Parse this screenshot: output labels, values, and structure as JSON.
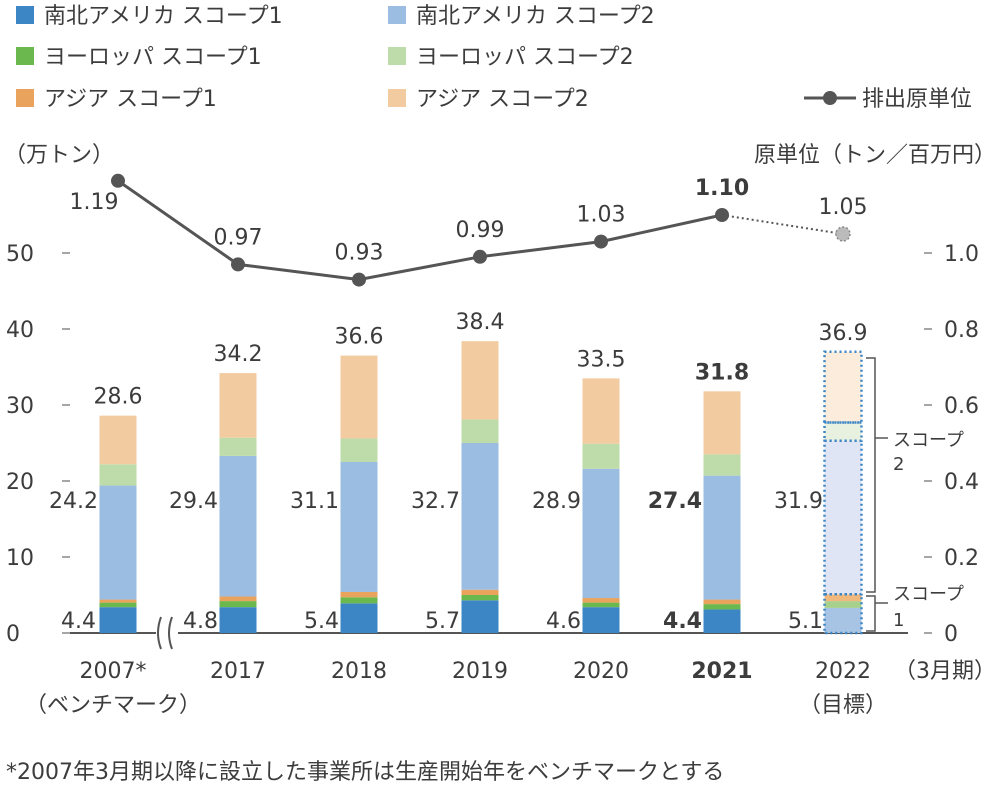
{
  "chart_data": {
    "type": "bar",
    "categories": [
      {
        "label": "2007*",
        "sublabel": "（ベンチマーク）",
        "bold": false
      },
      {
        "label": "2017",
        "sublabel": "",
        "bold": false
      },
      {
        "label": "2018",
        "sublabel": "",
        "bold": false
      },
      {
        "label": "2019",
        "sublabel": "",
        "bold": false
      },
      {
        "label": "2020",
        "sublabel": "",
        "bold": false
      },
      {
        "label": "2021",
        "sublabel": "",
        "bold": true
      },
      {
        "label": "2022",
        "sublabel": "（目標）",
        "bold": false,
        "target": true
      }
    ],
    "x_unit_label": "（3月期）",
    "series": [
      {
        "name": "南北アメリカ スコープ1",
        "color": "#3d86c6",
        "values": [
          3.4,
          3.4,
          3.9,
          4.3,
          3.4,
          3.1,
          3.3
        ]
      },
      {
        "name": "ヨーロッパ スコープ1",
        "color": "#6bb84f",
        "values": [
          0.6,
          0.8,
          0.8,
          0.7,
          0.6,
          0.7,
          0.9
        ]
      },
      {
        "name": "アジア スコープ1",
        "color": "#eaa35c",
        "values": [
          0.4,
          0.6,
          0.7,
          0.7,
          0.6,
          0.6,
          0.9
        ]
      },
      {
        "name": "南北アメリカ スコープ2",
        "color": "#9bbde2",
        "values": [
          15.0,
          18.5,
          17.1,
          19.3,
          17.0,
          16.3,
          20.2
        ]
      },
      {
        "name": "ヨーロッパ スコープ2",
        "color": "#bedcaa",
        "values": [
          2.8,
          2.4,
          3.1,
          3.1,
          3.3,
          2.8,
          2.4
        ]
      },
      {
        "name": "アジア スコープ2",
        "color": "#f3cba0",
        "values": [
          6.4,
          8.5,
          10.9,
          10.3,
          8.6,
          8.3,
          9.3
        ]
      }
    ],
    "totals": [
      "28.6",
      "34.2",
      "36.6",
      "38.4",
      "33.5",
      "31.8",
      "36.9"
    ],
    "scope2_totals": [
      "24.2",
      "29.4",
      "31.1",
      "32.7",
      "28.9",
      "27.4",
      "31.9"
    ],
    "scope1_totals": [
      "4.4",
      "4.8",
      "5.4",
      "5.7",
      "4.6",
      "4.4",
      "5.1"
    ],
    "line": {
      "name": "排出原単位",
      "color": "#555555",
      "values": [
        1.19,
        0.97,
        0.93,
        0.99,
        1.03,
        1.1,
        1.05
      ],
      "labels": [
        "1.19",
        "0.97",
        "0.93",
        "0.99",
        "1.03",
        "1.10",
        "1.05"
      ]
    },
    "y_left": {
      "label": "（万トン）",
      "min": 0,
      "max": 55,
      "ticks": [
        "0",
        "10",
        "20",
        "30",
        "40",
        "50"
      ]
    },
    "y_right": {
      "label": "原単位（トン／百万円）",
      "min": 0,
      "max": 1.1,
      "ticks": [
        "0",
        "0.2",
        "0.4",
        "0.6",
        "0.8",
        "1.0"
      ]
    },
    "brackets": {
      "scope2": [
        "スコープ",
        "2"
      ],
      "scope1": [
        "スコープ",
        "1"
      ]
    },
    "grid": false,
    "legend_position": "top"
  },
  "footnote": "*2007年3月期以降に設立した事業所は生産開始年をベンチマークとする"
}
